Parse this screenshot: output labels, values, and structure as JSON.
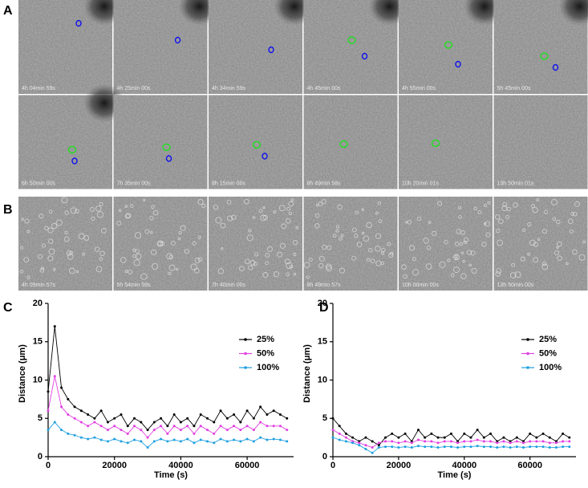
{
  "panels": {
    "A": {
      "label": "A",
      "timestamps": [
        "4h 04min 59s",
        "4h 25min 00s",
        "4h 34min 59s",
        "4h 45min 00s",
        "4h 55min 00s",
        "5h 45min 00s",
        "6h 50min 00s",
        "7h 35min 00s",
        "8h 15min 00s",
        "8h 49min 58s",
        "10h 20min 01s",
        "13h 50min 01s"
      ]
    },
    "B": {
      "label": "B",
      "timestamps": [
        "4h 09min 57s",
        "5h 54min 59s",
        "7h 40min 00s",
        "8h 49min 57s",
        "10h 00min 00s",
        "13h 50min 00s"
      ]
    }
  },
  "chart_data": [
    {
      "type": "line",
      "panel_label": "C",
      "x_label": "Time (s)",
      "y_label": "Distance (μm)",
      "x": [
        0,
        2000,
        4000,
        6000,
        8000,
        10000,
        12000,
        14000,
        16000,
        18000,
        20000,
        22000,
        24000,
        26000,
        28000,
        30000,
        32000,
        34000,
        36000,
        38000,
        40000,
        42000,
        44000,
        46000,
        48000,
        50000,
        52000,
        54000,
        56000,
        58000,
        60000,
        62000,
        64000,
        66000,
        68000,
        70000,
        72000
      ],
      "series": [
        {
          "name": "25%",
          "color": "#000000",
          "values": [
            8.5,
            17,
            9,
            7.5,
            6.5,
            6,
            5.5,
            5,
            6,
            4.5,
            5,
            5.5,
            4,
            5,
            4.5,
            3.5,
            4.5,
            5,
            4,
            5.5,
            4.5,
            5,
            4,
            5.5,
            5,
            4.5,
            6,
            5,
            5.5,
            4.5,
            6,
            5,
            6.5,
            5.5,
            6,
            5.5,
            5
          ]
        },
        {
          "name": "50%",
          "color": "#e040e0",
          "values": [
            6,
            10.5,
            6.5,
            5.5,
            5,
            4.5,
            4,
            4.5,
            4,
            3.5,
            4,
            3.5,
            3,
            4,
            3.5,
            2.5,
            3.5,
            4,
            3,
            4,
            3.5,
            4,
            3,
            4,
            3.5,
            3,
            4,
            3.5,
            4,
            3.5,
            4,
            3.5,
            4.5,
            4,
            4,
            4,
            3.5
          ]
        },
        {
          "name": "100%",
          "color": "#1fa0e0",
          "values": [
            3.5,
            4.5,
            3.5,
            3,
            2.8,
            2.5,
            2.3,
            2.5,
            2.2,
            2,
            2.3,
            2,
            1.8,
            2.2,
            2,
            1.2,
            2,
            2.3,
            2,
            2.2,
            2,
            2.3,
            1.8,
            2.2,
            2,
            1.8,
            2.3,
            2,
            2.2,
            2,
            2.3,
            2,
            2.5,
            2.2,
            2.3,
            2.2,
            2
          ]
        }
      ],
      "xlim": [
        0,
        74000
      ],
      "xticks": [
        0,
        20000,
        40000,
        60000
      ],
      "ylim": [
        0,
        20
      ],
      "yticks": [
        0,
        5,
        10,
        15,
        20
      ]
    },
    {
      "type": "line",
      "panel_label": "D",
      "x_label": "Time (s)",
      "y_label": "Distance (μm)",
      "x": [
        0,
        2000,
        4000,
        6000,
        8000,
        10000,
        12000,
        14000,
        16000,
        18000,
        20000,
        22000,
        24000,
        26000,
        28000,
        30000,
        32000,
        34000,
        36000,
        38000,
        40000,
        42000,
        44000,
        46000,
        48000,
        50000,
        52000,
        54000,
        56000,
        58000,
        60000,
        62000,
        64000,
        66000,
        68000,
        70000,
        72000
      ],
      "series": [
        {
          "name": "25%",
          "color": "#000000",
          "values": [
            5,
            4,
            3,
            2.5,
            2,
            2.5,
            2,
            1.5,
            2.5,
            3,
            2.5,
            3,
            2,
            3.5,
            2.5,
            3,
            2.5,
            2.5,
            3,
            2,
            3,
            2.5,
            3.5,
            2.5,
            3,
            2,
            2.5,
            2,
            2.5,
            2,
            3,
            2.5,
            3,
            2.5,
            2,
            3,
            2.5
          ]
        },
        {
          "name": "50%",
          "color": "#e040e0",
          "values": [
            3.5,
            3,
            2.5,
            2,
            1.8,
            1.5,
            1.2,
            1.8,
            2,
            2,
            1.8,
            2,
            1.8,
            2.2,
            2,
            2,
            1.8,
            2,
            2,
            1.8,
            2,
            2,
            2.2,
            2,
            2,
            1.8,
            2,
            1.8,
            2,
            1.8,
            2,
            2,
            2,
            1.8,
            1.8,
            2,
            2
          ]
        },
        {
          "name": "100%",
          "color": "#1fa0e0",
          "values": [
            2.5,
            2.2,
            2,
            1.8,
            1.5,
            1,
            0.5,
            1.2,
            1.3,
            1.3,
            1.2,
            1.3,
            1.2,
            1.4,
            1.3,
            1.3,
            1.2,
            1.3,
            1.3,
            1.2,
            1.3,
            1.3,
            1.4,
            1.3,
            1.3,
            1.2,
            1.3,
            1.2,
            1.3,
            1.2,
            1.3,
            1.3,
            1.3,
            1.2,
            1.2,
            1.3,
            1.3
          ]
        }
      ],
      "xlim": [
        0,
        74000
      ],
      "xticks": [
        0,
        20000,
        40000,
        60000
      ],
      "ylim": [
        0,
        20
      ],
      "yticks": [
        0,
        5,
        10,
        15,
        20
      ]
    }
  ]
}
